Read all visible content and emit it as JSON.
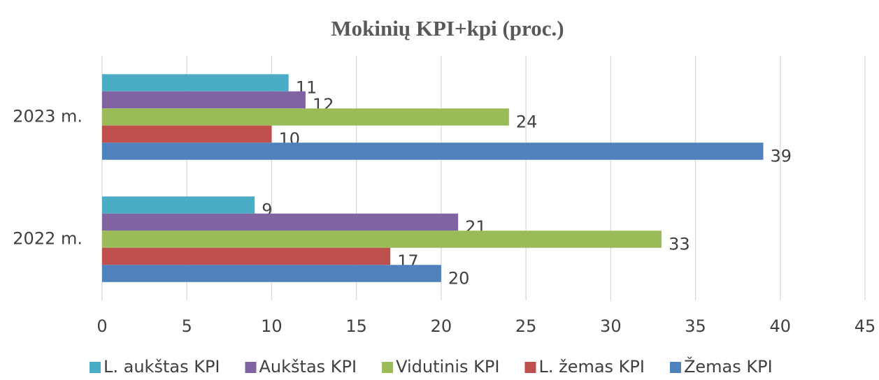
{
  "chart_data": {
    "type": "barh",
    "title": "Mokinių KPI+kpi (proc.)",
    "categories": [
      "2022 m.",
      "2023 m."
    ],
    "series": [
      {
        "name": "L. aukštas KPI",
        "color": "#4bacc6",
        "values": [
          9,
          11
        ]
      },
      {
        "name": "Aukštas KPI",
        "color": "#8064a2",
        "values": [
          21,
          12
        ]
      },
      {
        "name": "Vidutinis KPI",
        "color": "#9bbb59",
        "values": [
          33,
          24
        ]
      },
      {
        "name": "L. žemas KPI",
        "color": "#c0504d",
        "values": [
          17,
          10
        ]
      },
      {
        "name": "Žemas KPI",
        "color": "#4f81bd",
        "values": [
          20,
          39
        ]
      }
    ],
    "xlim": [
      0,
      45
    ],
    "xticks": [
      0,
      5,
      10,
      15,
      20,
      25,
      30,
      35,
      40,
      45
    ],
    "grid": true,
    "legend": "bottom"
  }
}
